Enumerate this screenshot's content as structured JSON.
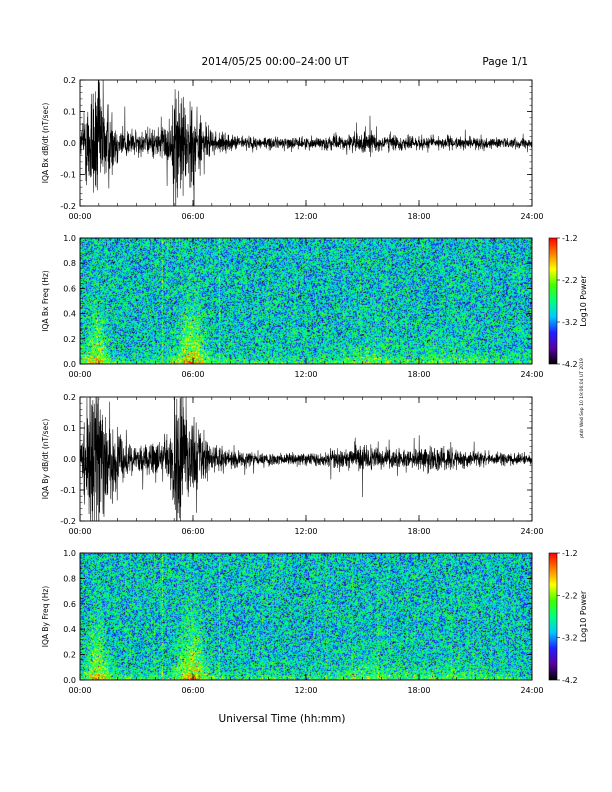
{
  "header": {
    "title": "2014/05/25  00:00–24:00 UT",
    "page": "Page 1/1"
  },
  "footer": {
    "x_title": "Universal Time (hh:mm)",
    "side_stamp": "ptdr Wed Sep 10 19:06:04 UT 2019"
  },
  "colors": {
    "trace": "#000000",
    "frame": "#000000",
    "colormap": [
      "#000000",
      "#5a00a0",
      "#2020ff",
      "#00c8ff",
      "#00ff80",
      "#40ff00",
      "#ffff00",
      "#ff8000",
      "#ff0000"
    ]
  },
  "chart_data": [
    {
      "type": "line",
      "ylabel": "IQA Bx dB/dt (nT/sec)",
      "ylim": [
        -0.2,
        0.2
      ],
      "yticks": [
        "0.2",
        "0.1",
        "0.0",
        "-0.1",
        "-0.2"
      ],
      "xlim": [
        0,
        24
      ],
      "xticks": [
        "00:00",
        "06:00",
        "12:00",
        "18:00",
        "24:00"
      ],
      "envelope": {
        "hours": [
          0,
          0.3,
          0.6,
          1.0,
          1.4,
          2.0,
          3.0,
          4.0,
          4.8,
          5.2,
          5.6,
          6.0,
          6.5,
          7.0,
          8.0,
          10.0,
          12.0,
          14.0,
          15.0,
          15.5,
          16.0,
          17.0,
          18.0,
          19.0,
          20.0,
          22.0,
          24.0
        ],
        "amplitude": [
          0.03,
          0.14,
          0.22,
          0.24,
          0.16,
          0.07,
          0.04,
          0.05,
          0.08,
          0.25,
          0.15,
          0.16,
          0.08,
          0.04,
          0.025,
          0.02,
          0.02,
          0.025,
          0.04,
          0.035,
          0.03,
          0.025,
          0.022,
          0.025,
          0.02,
          0.018,
          0.016
        ]
      }
    },
    {
      "type": "heatmap",
      "ylabel": "IQA Bx Freq (Hz)",
      "ylim": [
        0.0,
        1.0
      ],
      "yticks": [
        "1.0",
        "0.8",
        "0.6",
        "0.4",
        "0.2",
        "0.0"
      ],
      "xlim": [
        0,
        24
      ],
      "xticks": [
        "00:00",
        "06:00",
        "12:00",
        "18:00",
        "24:00"
      ],
      "colorbar": {
        "label": "Log10 Power",
        "range": [
          -4.2,
          -1.2
        ],
        "ticks": [
          "-1.2",
          "-2.2",
          "-3.2",
          "-4.2"
        ]
      }
    },
    {
      "type": "line",
      "ylabel": "IQA By dB/dt (nT/sec)",
      "ylim": [
        -0.2,
        0.2
      ],
      "yticks": [
        "0.2",
        "0.1",
        "0.0",
        "-0.1",
        "-0.2"
      ],
      "xlim": [
        0,
        24
      ],
      "xticks": [
        "00:00",
        "06:00",
        "12:00",
        "18:00",
        "24:00"
      ],
      "envelope": {
        "hours": [
          0,
          0.3,
          0.6,
          1.0,
          1.4,
          2.0,
          3.0,
          4.0,
          4.8,
          5.2,
          5.6,
          6.0,
          6.5,
          7.0,
          8.0,
          10.0,
          12.0,
          14.0,
          15.0,
          15.5,
          16.0,
          17.0,
          18.0,
          19.0,
          20.0,
          22.0,
          24.0
        ],
        "amplitude": [
          0.04,
          0.18,
          0.25,
          0.25,
          0.18,
          0.09,
          0.05,
          0.06,
          0.1,
          0.25,
          0.18,
          0.14,
          0.08,
          0.05,
          0.03,
          0.02,
          0.02,
          0.03,
          0.045,
          0.04,
          0.035,
          0.03,
          0.035,
          0.05,
          0.03,
          0.02,
          0.018
        ]
      }
    },
    {
      "type": "heatmap",
      "ylabel": "IQA By Freq (Hz)",
      "ylim": [
        0.0,
        1.0
      ],
      "yticks": [
        "1.0",
        "0.8",
        "0.6",
        "0.4",
        "0.2",
        "0.0"
      ],
      "xlim": [
        0,
        24
      ],
      "xticks": [
        "00:00",
        "06:00",
        "12:00",
        "18:00",
        "24:00"
      ],
      "colorbar": {
        "label": "Log10 Power",
        "range": [
          -4.2,
          -1.2
        ],
        "ticks": [
          "-1.2",
          "-2.2",
          "-3.2",
          "-4.2"
        ]
      }
    }
  ]
}
